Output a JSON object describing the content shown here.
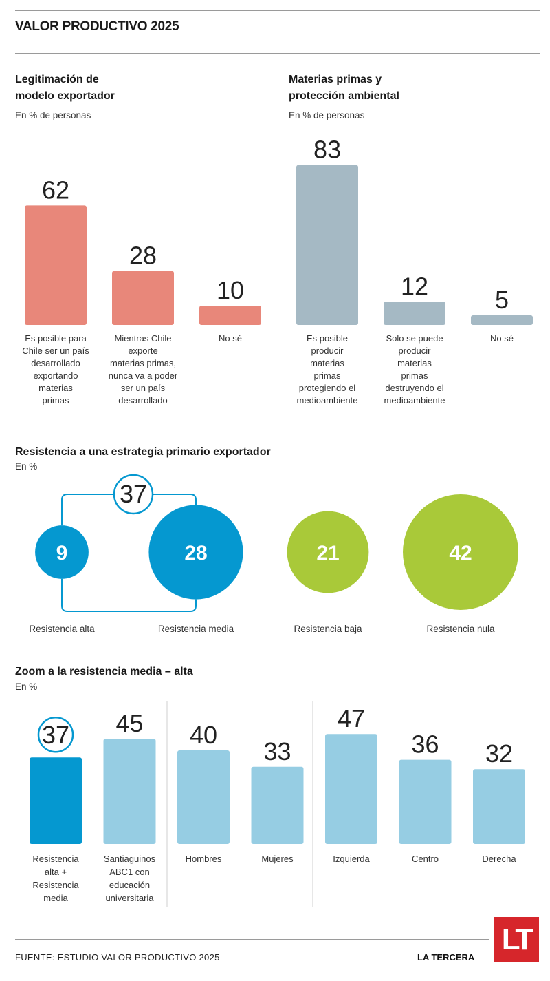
{
  "header": {
    "title": "VALOR PRODUCTIVO 2025"
  },
  "colors": {
    "salmon": "#e8877a",
    "greyblue": "#a5b9c4",
    "blue": "#0598d0",
    "green": "#a9c939",
    "lightblue": "#96cde3"
  },
  "chart_data": [
    {
      "type": "bar",
      "title": "Legitimación de modelo exportador",
      "title_lines": [
        "Legitimación de",
        "modelo exportador"
      ],
      "subtitle": "En % de personas",
      "categories": [
        "Es posible para Chile ser un país desarrollado exportando materias primas",
        "Mientras Chile exporte materias primas, nunca va a poder ser un país desarrollado",
        "No sé"
      ],
      "category_lines": [
        [
          "Es posible para",
          "Chile ser un país",
          "desarrollado",
          "exportando",
          "materias",
          "primas"
        ],
        [
          "Mientras Chile",
          "exporte",
          "materias primas,",
          "nunca va a poder",
          "ser un país",
          "desarrollado"
        ],
        [
          "No sé"
        ]
      ],
      "values": [
        62,
        28,
        10
      ],
      "ylim": [
        0,
        100
      ]
    },
    {
      "type": "bar",
      "title": "Materias primas y protección ambiental",
      "title_lines": [
        "Materias primas y",
        "protección ambiental"
      ],
      "subtitle": "En % de personas",
      "categories": [
        "Es posible producir materias primas protegiendo el medioambiente",
        "Solo se puede producir materias primas destruyendo el medioambiente",
        "No sé"
      ],
      "category_lines": [
        [
          "Es posible",
          "producir",
          "materias",
          "primas",
          "protegiendo el",
          "medioambiente"
        ],
        [
          "Solo se puede",
          "producir",
          "materias",
          "primas",
          "destruyendo el",
          "medioambiente"
        ],
        [
          "No sé"
        ]
      ],
      "values": [
        83,
        12,
        5
      ],
      "ylim": [
        0,
        100
      ]
    },
    {
      "type": "bubble",
      "title": "Resistencia a una estrategia primario exportador",
      "subtitle": "En %",
      "categories": [
        "Resistencia alta",
        "Resistencia media",
        "Resistencia baja",
        "Resistencia nula"
      ],
      "values": [
        9,
        28,
        21,
        42
      ],
      "group_total": 37
    },
    {
      "type": "bar",
      "title": "Zoom a la resistencia media – alta",
      "subtitle": "En %",
      "categories": [
        "Resistencia alta + Resistencia media",
        "Santiaguinos ABC1 con educación universitaria",
        "Hombres",
        "Mujeres",
        "Izquierda",
        "Centro",
        "Derecha"
      ],
      "category_lines": [
        [
          "Resistencia",
          "alta +",
          "Resistencia",
          "media"
        ],
        [
          "Santiaguinos",
          "ABC1 con",
          "educación",
          "universitaria"
        ],
        [
          "Hombres"
        ],
        [
          "Mujeres"
        ],
        [
          "Izquierda"
        ],
        [
          "Centro"
        ],
        [
          "Derecha"
        ]
      ],
      "values": [
        37,
        45,
        40,
        33,
        47,
        36,
        32
      ],
      "ylim": [
        0,
        100
      ]
    }
  ],
  "footer": {
    "source": "FUENTE: ESTUDIO VALOR PRODUCTIVO 2025",
    "brand": "LA TERCERA",
    "logo": "LT"
  }
}
